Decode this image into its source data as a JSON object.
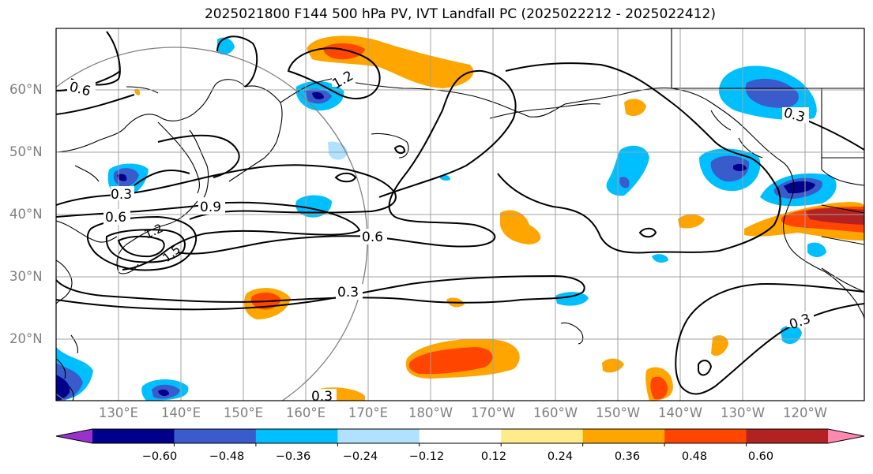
{
  "title": "2025021800 F144 500 hPa PV, IVT Landfall PC (2025022212 - 2025022412)",
  "map": {
    "lat_labels": [
      "60°N",
      "50°N",
      "40°N",
      "30°N",
      "20°N"
    ],
    "lon_labels": [
      "130°E",
      "140°E",
      "150°E",
      "160°E",
      "170°E",
      "180°W",
      "170°W",
      "160°W",
      "150°W",
      "140°W",
      "130°W",
      "120°W"
    ],
    "contour_labels": [
      "0.6",
      "1.2",
      "0.3",
      "0.6",
      "1.2",
      "1.5",
      "0.9",
      "0.6",
      "0.3",
      "0.3",
      "0.3",
      "0.3"
    ],
    "projection": "cylindrical",
    "gridlines": true
  },
  "colorbar": {
    "ticks": [
      "−0.60",
      "−0.48",
      "−0.36",
      "−0.24",
      "−0.12",
      "0.12",
      "0.24",
      "0.36",
      "0.48",
      "0.60"
    ],
    "colors": [
      "#9932cc",
      "#00008b",
      "#3a5bcc",
      "#00bfff",
      "#b0e2ff",
      "#ffffff",
      "#ffeb8a",
      "#ffa500",
      "#ff4500",
      "#b22222",
      "#ff88b0"
    ],
    "extend": "both"
  }
}
